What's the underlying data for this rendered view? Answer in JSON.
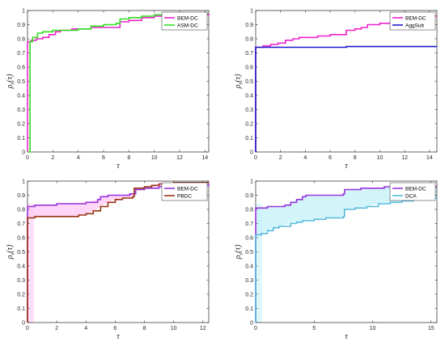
{
  "chart_data": [
    {
      "type": "line",
      "xlabel": "τ",
      "ylabel_main": "ρ",
      "ylabel_sub": "s",
      "ylabel_arg": "(τ)",
      "xlim": [
        0,
        14.3
      ],
      "ylim": [
        0,
        1
      ],
      "xticks": [
        "0",
        "2",
        "4",
        "6",
        "8",
        "10",
        "12",
        "14"
      ],
      "yticks": [
        "0",
        "0.1",
        "0.2",
        "0.3",
        "0.4",
        "0.5",
        "0.6",
        "0.7",
        "0.8",
        "0.9",
        "1"
      ],
      "legend_position": "top-right",
      "series": [
        {
          "name": "BEM-DC",
          "color": "#ee22cc",
          "points": [
            [
              0,
              0
            ],
            [
              0,
              0.78
            ],
            [
              0.3,
              0.79
            ],
            [
              0.7,
              0.8
            ],
            [
              1.2,
              0.81
            ],
            [
              1.7,
              0.83
            ],
            [
              2.2,
              0.85
            ],
            [
              2.6,
              0.86
            ],
            [
              3.5,
              0.87
            ],
            [
              4.0,
              0.87
            ],
            [
              5.0,
              0.88
            ],
            [
              7.0,
              0.88
            ],
            [
              7.3,
              0.88
            ],
            [
              7.3,
              0.92
            ],
            [
              8.0,
              0.93
            ],
            [
              9.0,
              0.95
            ],
            [
              10.0,
              0.96
            ],
            [
              11.0,
              0.97
            ],
            [
              12.0,
              0.97
            ],
            [
              14.3,
              0.98
            ]
          ]
        },
        {
          "name": "ASM-DC",
          "color": "#33dd22",
          "points": [
            [
              0,
              0
            ],
            [
              0.2,
              0.78
            ],
            [
              0.4,
              0.81
            ],
            [
              0.8,
              0.84
            ],
            [
              1.2,
              0.85
            ],
            [
              2.0,
              0.86
            ],
            [
              3.0,
              0.86
            ],
            [
              4.0,
              0.87
            ],
            [
              5.0,
              0.89
            ],
            [
              6.0,
              0.9
            ],
            [
              7.0,
              0.91
            ],
            [
              7.3,
              0.92
            ],
            [
              7.3,
              0.94
            ],
            [
              8.0,
              0.95
            ],
            [
              9.0,
              0.96
            ],
            [
              10.0,
              0.97
            ],
            [
              11.0,
              0.98
            ],
            [
              14.3,
              0.98
            ]
          ]
        }
      ]
    },
    {
      "type": "line",
      "xlabel": "τ",
      "ylabel_main": "ρ",
      "ylabel_sub": "s",
      "ylabel_arg": "(τ)",
      "xlim": [
        0,
        14.6
      ],
      "ylim": [
        0,
        1
      ],
      "xticks": [
        "0",
        "2",
        "4",
        "6",
        "8",
        "10",
        "12",
        "14"
      ],
      "yticks": [
        "0",
        "0.1",
        "0.2",
        "0.3",
        "0.4",
        "0.5",
        "0.6",
        "0.7",
        "0.8",
        "0.9",
        "1"
      ],
      "legend_position": "top-right",
      "series": [
        {
          "name": "BEM-DC",
          "color": "#ee22cc",
          "points": [
            [
              0,
              0
            ],
            [
              0,
              0.74
            ],
            [
              0.6,
              0.75
            ],
            [
              1.2,
              0.76
            ],
            [
              1.8,
              0.77
            ],
            [
              2.4,
              0.79
            ],
            [
              3.0,
              0.8
            ],
            [
              3.5,
              0.81
            ],
            [
              5.0,
              0.82
            ],
            [
              6.0,
              0.83
            ],
            [
              7.0,
              0.83
            ],
            [
              7.2,
              0.83
            ],
            [
              7.3,
              0.86
            ],
            [
              8.0,
              0.87
            ],
            [
              8.5,
              0.88
            ],
            [
              9.0,
              0.9
            ],
            [
              10.0,
              0.91
            ],
            [
              11.0,
              0.92
            ],
            [
              12.0,
              0.93
            ],
            [
              12.5,
              0.94
            ],
            [
              13.0,
              0.95
            ],
            [
              14.0,
              0.96
            ],
            [
              14.6,
              0.96
            ]
          ]
        },
        {
          "name": "AggSub",
          "color": "#1a1acc",
          "points": [
            [
              0,
              0
            ],
            [
              0,
              0.74
            ],
            [
              2,
              0.74
            ],
            [
              7.3,
              0.745
            ],
            [
              14.6,
              0.745
            ]
          ]
        }
      ]
    },
    {
      "type": "line",
      "xlabel": "τ",
      "ylabel_main": "ρ",
      "ylabel_sub": "s",
      "ylabel_arg": "(τ)",
      "xlim": [
        0,
        12.4
      ],
      "ylim": [
        0,
        1
      ],
      "xticks": [
        "0",
        "2",
        "4",
        "6",
        "8",
        "10",
        "12"
      ],
      "yticks": [
        "0",
        "0.1",
        "0.2",
        "0.3",
        "0.4",
        "0.5",
        "0.6",
        "0.7",
        "0.8",
        "0.9",
        "1"
      ],
      "legend_position": "top-right",
      "series": [
        {
          "name": "BEM-DC",
          "color": "#9933dd",
          "points": [
            [
              0,
              0
            ],
            [
              0,
              0.82
            ],
            [
              0.5,
              0.83
            ],
            [
              1.5,
              0.83
            ],
            [
              2.0,
              0.84
            ],
            [
              3.0,
              0.84
            ],
            [
              4.0,
              0.85
            ],
            [
              4.8,
              0.87
            ],
            [
              5.0,
              0.89
            ],
            [
              5.5,
              0.9
            ],
            [
              6.5,
              0.9
            ],
            [
              7.0,
              0.91
            ],
            [
              7.3,
              0.91
            ],
            [
              7.4,
              0.94
            ],
            [
              8.0,
              0.95
            ],
            [
              9.0,
              0.96
            ],
            [
              10.0,
              0.97
            ],
            [
              11.0,
              0.97
            ],
            [
              12.4,
              0.98
            ]
          ]
        },
        {
          "name": "PBDC",
          "color": "#993311",
          "points": [
            [
              0,
              0
            ],
            [
              0,
              0.74
            ],
            [
              0.5,
              0.75
            ],
            [
              1.5,
              0.75
            ],
            [
              3.0,
              0.75
            ],
            [
              3.5,
              0.76
            ],
            [
              4.0,
              0.77
            ],
            [
              4.5,
              0.79
            ],
            [
              5.0,
              0.82
            ],
            [
              5.5,
              0.85
            ],
            [
              6.0,
              0.87
            ],
            [
              6.5,
              0.88
            ],
            [
              7.0,
              0.88
            ],
            [
              7.2,
              0.89
            ],
            [
              7.3,
              0.95
            ],
            [
              8.0,
              0.96
            ],
            [
              8.5,
              0.97
            ],
            [
              9.0,
              0.98
            ],
            [
              10.0,
              0.99
            ],
            [
              12.4,
              0.99
            ]
          ]
        }
      ]
    },
    {
      "type": "line",
      "xlabel": "τ",
      "ylabel_main": "ρ",
      "ylabel_sub": "s",
      "ylabel_arg": "(τ)",
      "xlim": [
        0,
        15.5
      ],
      "ylim": [
        0,
        1
      ],
      "xticks": [
        "0",
        "5",
        "10",
        "15"
      ],
      "yticks": [
        "0",
        "0.1",
        "0.2",
        "0.3",
        "0.4",
        "0.5",
        "0.6",
        "0.7",
        "0.8",
        "0.9",
        "1"
      ],
      "legend_position": "top-right",
      "series": [
        {
          "name": "BEM-DC",
          "color": "#9933dd",
          "points": [
            [
              0,
              0
            ],
            [
              0,
              0.81
            ],
            [
              0.5,
              0.81
            ],
            [
              1.0,
              0.82
            ],
            [
              2.0,
              0.82
            ],
            [
              2.5,
              0.83
            ],
            [
              3.0,
              0.85
            ],
            [
              3.5,
              0.87
            ],
            [
              4.0,
              0.89
            ],
            [
              4.3,
              0.9
            ],
            [
              6.0,
              0.9
            ],
            [
              7.0,
              0.9
            ],
            [
              7.5,
              0.91
            ],
            [
              7.6,
              0.94
            ],
            [
              9.0,
              0.95
            ],
            [
              10.0,
              0.95
            ],
            [
              11.0,
              0.96
            ],
            [
              13.0,
              0.96
            ],
            [
              15.5,
              0.96
            ]
          ]
        },
        {
          "name": "DCA",
          "color": "#55bbdd",
          "points": [
            [
              0,
              0
            ],
            [
              0,
              0.62
            ],
            [
              0.5,
              0.63
            ],
            [
              1.0,
              0.65
            ],
            [
              1.5,
              0.67
            ],
            [
              2.0,
              0.68
            ],
            [
              3.0,
              0.7
            ],
            [
              3.5,
              0.71
            ],
            [
              4.0,
              0.72
            ],
            [
              5.0,
              0.73
            ],
            [
              6.0,
              0.74
            ],
            [
              7.0,
              0.74
            ],
            [
              7.5,
              0.75
            ],
            [
              7.6,
              0.8
            ],
            [
              8.5,
              0.81
            ],
            [
              9.5,
              0.82
            ],
            [
              10.5,
              0.84
            ],
            [
              11.5,
              0.85
            ],
            [
              12.5,
              0.86
            ],
            [
              13.5,
              0.87
            ],
            [
              14.5,
              0.88
            ],
            [
              15.5,
              0.89
            ]
          ]
        }
      ]
    }
  ]
}
